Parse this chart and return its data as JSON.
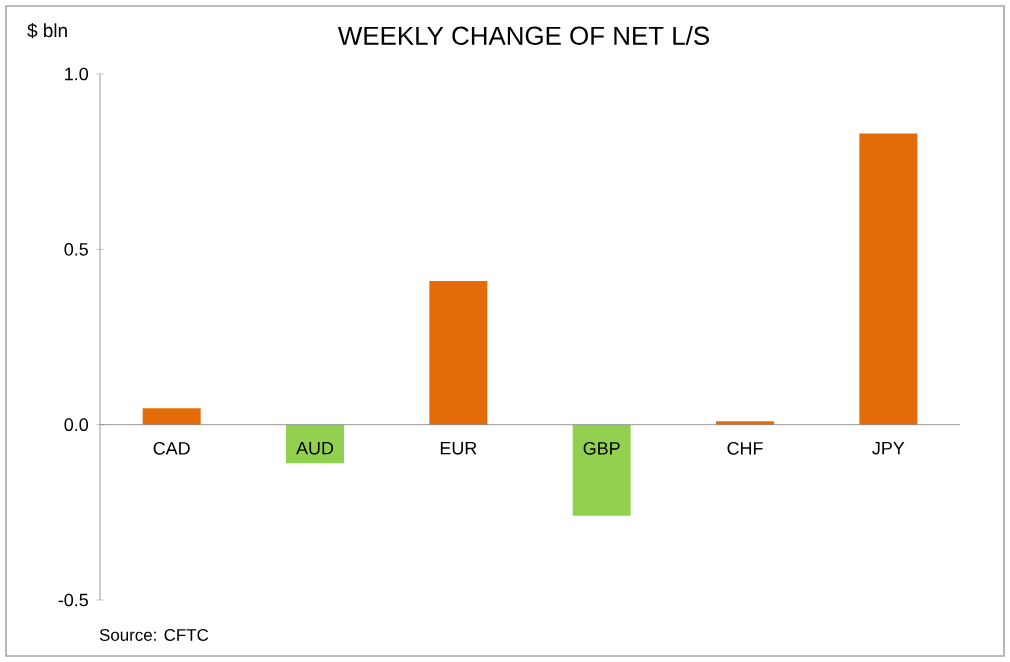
{
  "chart_data": {
    "type": "bar",
    "title": "WEEKLY CHANGE OF NET L/S",
    "ylabel": "$ bln",
    "categories": [
      "CAD",
      "AUD",
      "EUR",
      "GBP",
      "CHF",
      "JPY"
    ],
    "values": [
      0.047,
      -0.11,
      0.41,
      -0.26,
      0.01,
      0.83
    ],
    "colors": [
      "#e36c09",
      "#92d050",
      "#e36c09",
      "#92d050",
      "#e36c09",
      "#e36c09"
    ],
    "ylim": [
      -0.5,
      1.0
    ],
    "yticks": [
      {
        "value": -0.5,
        "label": "-0.5"
      },
      {
        "value": 0,
        "label": "0.0"
      },
      {
        "value": 0.5,
        "label": "0.5"
      },
      {
        "value": 1.0,
        "label": "1.0"
      }
    ],
    "grid": false,
    "annotations": [
      "Source: CFTC"
    ]
  }
}
